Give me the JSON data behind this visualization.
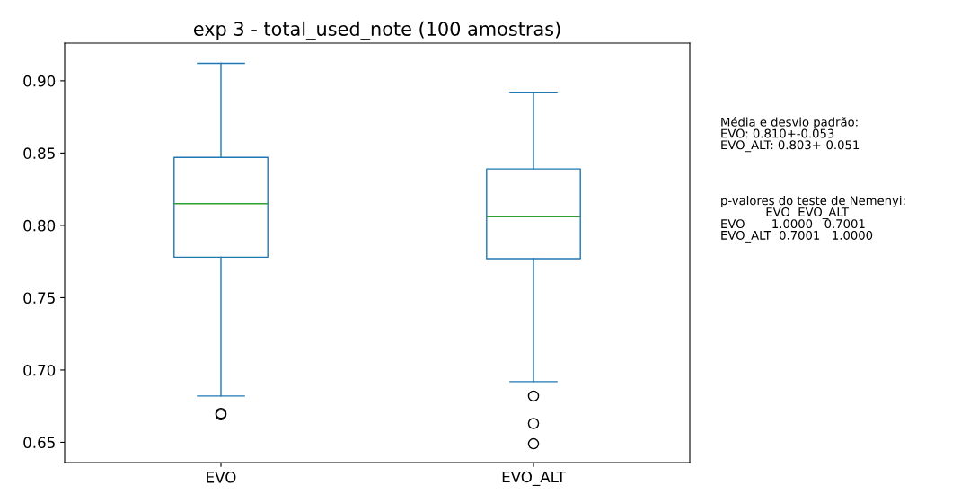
{
  "chart_data": {
    "type": "box",
    "title": "exp 3 - total_used_note (100 amostras)",
    "categories": [
      "EVO",
      "EVO_ALT"
    ],
    "color": "#1f77b4",
    "boxes": [
      {
        "low": 0.682,
        "q1": 0.778,
        "median": 0.815,
        "q3": 0.847,
        "high": 0.912,
        "outliers": [
          0.669,
          0.67
        ]
      },
      {
        "low": 0.692,
        "q1": 0.777,
        "median": 0.806,
        "q3": 0.839,
        "high": 0.892,
        "outliers": [
          0.682,
          0.663,
          0.649
        ]
      }
    ],
    "ylim": [
      0.636,
      0.926
    ],
    "yticks": [
      0.65,
      {
        "value": 0.7,
        "label": "0.70"
      },
      0.75,
      {
        "value": 0.8,
        "label": "0.80"
      },
      0.85,
      {
        "value": 0.9,
        "label": "0.90"
      }
    ],
    "grid": false,
    "annotations": [
      "Média e desvio padrão:\nEVO: 0.810+-0.053\nEVO_ALT: 0.803+-0.051",
      "p-valores do teste de Nemenyi:\n            EVO  EVO_ALT\nEVO       1.0000   0.7001\nEVO_ALT  0.7001   1.0000"
    ]
  }
}
